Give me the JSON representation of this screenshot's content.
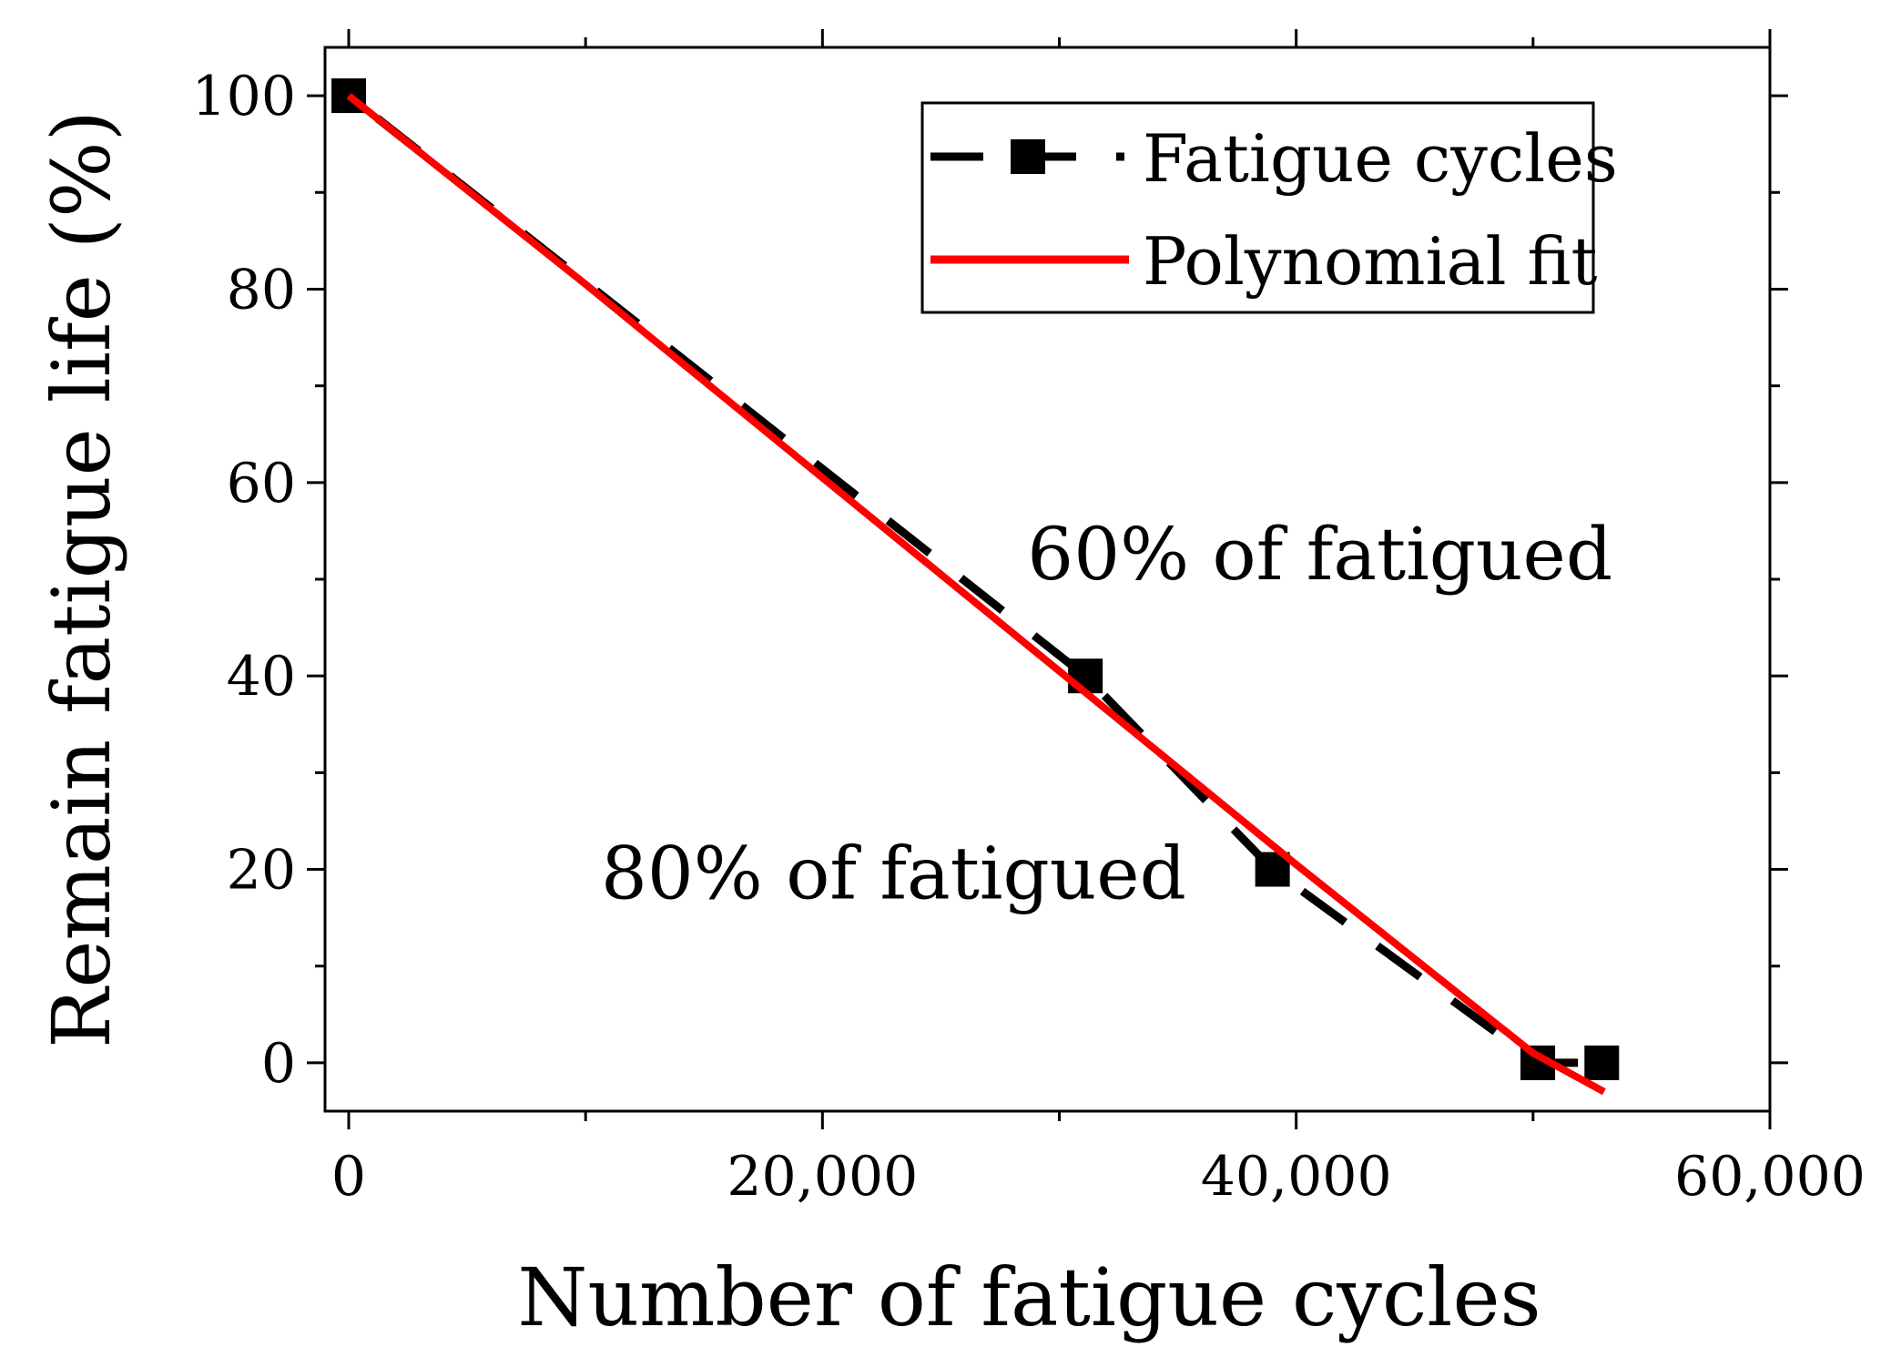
{
  "chart_data": {
    "type": "line",
    "title": "",
    "xlabel": "Number of fatigue cycles",
    "ylabel": "Remain fatigue life (%)",
    "xlim": [
      -1000,
      60000
    ],
    "ylim": [
      -5,
      105
    ],
    "x_ticks": [
      0,
      20000,
      40000,
      60000
    ],
    "x_tick_labels": [
      "0",
      "20,000",
      "40,000",
      "60,000"
    ],
    "y_ticks": [
      0,
      20,
      40,
      60,
      80,
      100
    ],
    "y_tick_labels": [
      "0",
      "20",
      "40",
      "60",
      "80",
      "100"
    ],
    "grid": false,
    "legend_position": "top-right",
    "series": [
      {
        "name": "Fatigue cycles",
        "style": "dashed line with square markers",
        "color": "#000000",
        "x": [
          0,
          31100,
          39000,
          50200,
          52900
        ],
        "y": [
          100,
          40,
          20,
          0,
          0
        ]
      },
      {
        "name": "Polynomial fit",
        "style": "solid line",
        "color": "#ff0000",
        "x": [
          0,
          10000,
          20000,
          30000,
          40000,
          50000,
          53000
        ],
        "y": [
          100,
          80.5,
          60.5,
          40.5,
          20.5,
          1,
          -3
        ]
      }
    ],
    "annotations": [
      {
        "text": "60% of fatigued",
        "x": 41000,
        "y": 50
      },
      {
        "text": "80% of fatigued",
        "x": 23000,
        "y": 17
      }
    ]
  }
}
